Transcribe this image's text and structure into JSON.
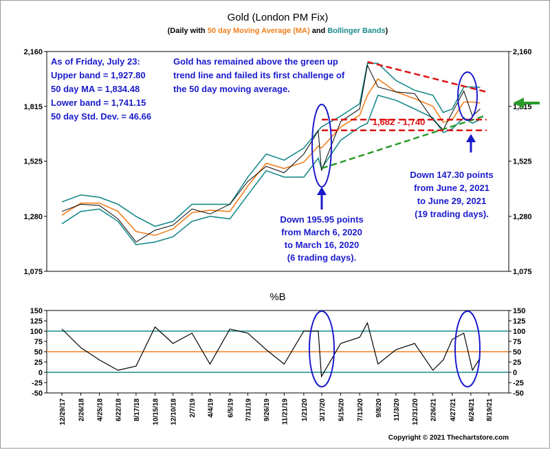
{
  "chart_data": [
    {
      "type": "line",
      "title": "Gold (London PM Fix)",
      "subtitle": [
        "(Daily with ",
        " and ",
        ")"
      ],
      "log_scale": true,
      "ylim": [
        1075,
        2160
      ],
      "yticks": [
        {
          "value": 1075,
          "label": "1,075"
        },
        {
          "value": 1280,
          "label": "1,280"
        },
        {
          "value": 1525,
          "label": "1,525"
        },
        {
          "value": 1815,
          "label": "1,815"
        },
        {
          "value": 2160,
          "label": "2,160"
        }
      ],
      "xlim": [
        "11/12/17",
        "10/20/21"
      ],
      "x": [
        "12/29/17",
        "2/26/18",
        "4/25/18",
        "6/22/18",
        "8/17/18",
        "10/15/18",
        "12/10/18",
        "2/7/19",
        "4/4/19",
        "6/5/19",
        "7/31/19",
        "9/26/19",
        "11/21/19",
        "1/21/20",
        "3/6/20",
        "3/16/20",
        "5/15/20",
        "7/13/20",
        "8/6/20",
        "9/8/20",
        "11/3/20",
        "12/31/20",
        "2/26/21",
        "3/30/21",
        "4/27/21",
        "6/2/21",
        "6/29/21",
        "7/23/21"
      ],
      "series": [
        {
          "color": "#000000",
          "values": [
            1300,
            1330,
            1325,
            1270,
            1180,
            1225,
            1245,
            1310,
            1290,
            1330,
            1430,
            1500,
            1470,
            1560,
            1680,
            1480,
            1730,
            1800,
            2067,
            1930,
            1900,
            1890,
            1740,
            1685,
            1780,
            1906,
            1760,
            1800
          ]
        },
        {
          "name": "50 day Moving Average (MA)",
          "color": "#f07f1e",
          "values": [
            1285,
            1335,
            1335,
            1300,
            1220,
            1205,
            1230,
            1295,
            1305,
            1300,
            1410,
            1515,
            1490,
            1520,
            1600,
            1590,
            1700,
            1765,
            1880,
            1980,
            1900,
            1860,
            1815,
            1725,
            1740,
            1840,
            1840,
            1834.48
          ]
        },
        {
          "name": "Bollinger Bands",
          "color": "#1a8a8a",
          "values": [
            1340,
            1370,
            1360,
            1330,
            1280,
            1240,
            1260,
            1330,
            1330,
            1330,
            1450,
            1560,
            1530,
            1590,
            1680,
            1700,
            1760,
            1830,
            2080,
            2080,
            1970,
            1910,
            1880,
            1780,
            1800,
            1930,
            1930,
            1927.8
          ],
          "lower": [
            1250,
            1300,
            1310,
            1260,
            1170,
            1180,
            1200,
            1260,
            1280,
            1270,
            1370,
            1480,
            1450,
            1450,
            1540,
            1490,
            1630,
            1700,
            1720,
            1880,
            1850,
            1800,
            1750,
            1670,
            1690,
            1750,
            1720,
            1741.15
          ]
        }
      ],
      "trend_lines": [
        {
          "color": "#dd1111",
          "x": [
            "8/6/20",
            "8/12/21"
          ],
          "values": [
            2090,
            1900
          ]
        },
        {
          "color": "#2a9a2a",
          "x": [
            "3/17/20",
            "8/12/21"
          ],
          "values": [
            1491,
            1764
          ]
        },
        {
          "color": "#dd1111",
          "x": [
            "3/17/20",
            "8/12/21"
          ],
          "values": [
            1740,
            1740
          ]
        },
        {
          "color": "#dd1111",
          "x": [
            "3/17/20",
            "8/12/21"
          ],
          "values": [
            1682,
            1682
          ]
        }
      ],
      "range_label": "1,682 - 1,740",
      "info_box": [
        "As of Friday, July 23:",
        "Upper band = 1,927.80",
        "50 day MA = 1,834.48",
        "Lower band = 1,741.15",
        "50 day Std. Dev. = 46.66"
      ],
      "note": [
        "Gold has remained above the green up",
        "trend line and failed its first challenge of",
        "the 50 day moving average."
      ],
      "annotation_left": [
        "Down 195.95 points",
        "from March 6, 2020",
        "to March 16, 2020",
        "(6 trading days)."
      ],
      "annotation_right": [
        "Down 147.30 points",
        "from June 2, 2021",
        "to June 29, 2021",
        "(19 trading days)."
      ]
    },
    {
      "type": "line",
      "title": "%B",
      "ylim": [
        -50,
        150
      ],
      "yticks": [
        -50,
        -25,
        0,
        25,
        50,
        75,
        100,
        125,
        150
      ],
      "xlim": [
        "11/12/17",
        "10/20/21"
      ],
      "xticks": [
        "12/29/17",
        "2/26/18",
        "4/25/18",
        "6/22/18",
        "8/17/18",
        "10/15/18",
        "12/10/18",
        "2/7/19",
        "4/4/19",
        "6/5/19",
        "7/31/19",
        "9/26/19",
        "11/21/19",
        "1/21/20",
        "3/17/20",
        "5/15/20",
        "7/13/20",
        "9/8/20",
        "11/3/20",
        "12/31/20",
        "2/26/21",
        "4/27/21",
        "6/24/21",
        "8/19/21"
      ],
      "reference_lines": [
        {
          "value": 100,
          "color": "#1a8a8a"
        },
        {
          "value": 50,
          "color": "#f07f1e"
        },
        {
          "value": 0,
          "color": "#1a8a8a"
        }
      ],
      "x": [
        "12/29/17",
        "2/26/18",
        "4/25/18",
        "6/22/18",
        "8/17/18",
        "10/15/18",
        "12/10/18",
        "2/7/19",
        "4/4/19",
        "6/5/19",
        "7/31/19",
        "9/26/19",
        "11/21/19",
        "1/21/20",
        "3/6/20",
        "3/16/20",
        "5/15/20",
        "7/13/20",
        "8/6/20",
        "9/8/20",
        "11/3/20",
        "12/31/20",
        "2/26/21",
        "3/30/21",
        "4/27/21",
        "6/2/21",
        "6/29/21",
        "7/23/21"
      ],
      "color": "#000000",
      "values": [
        105,
        60,
        30,
        5,
        15,
        110,
        70,
        95,
        20,
        105,
        95,
        55,
        20,
        100,
        100,
        -10,
        70,
        85,
        120,
        20,
        55,
        70,
        5,
        30,
        80,
        95,
        5,
        35
      ]
    }
  ],
  "copyright": "Copyright © 2021 Thechartstore.com"
}
